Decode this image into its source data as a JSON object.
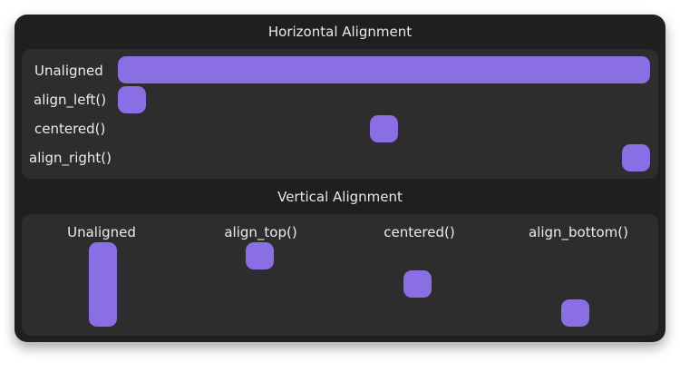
{
  "colors": {
    "window_bg": "#1f1f1f",
    "panel_bg": "#2d2d2d",
    "accent": "#8a6ee3",
    "text": "#ececec"
  },
  "horizontal": {
    "title": "Horizontal Alignment",
    "rows": [
      {
        "label": "Unaligned"
      },
      {
        "label": "align_left()"
      },
      {
        "label": "centered()"
      },
      {
        "label": "align_right()"
      }
    ]
  },
  "vertical": {
    "title": "Vertical Alignment",
    "columns": [
      {
        "label": "Unaligned"
      },
      {
        "label": "align_top()"
      },
      {
        "label": "centered()"
      },
      {
        "label": "align_bottom()"
      }
    ]
  }
}
